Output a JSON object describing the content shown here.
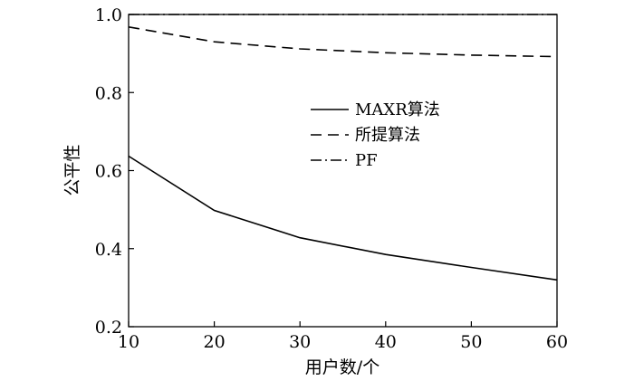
{
  "chart_data": {
    "type": "line",
    "xlabel": "用户数/个",
    "ylabel": "公平性",
    "x": [
      10,
      20,
      30,
      40,
      50,
      60
    ],
    "xlim": [
      10,
      60
    ],
    "ylim": [
      0.2,
      1.0
    ],
    "xticks": [
      10,
      20,
      30,
      40,
      50,
      60
    ],
    "yticks": [
      0.2,
      0.4,
      0.6,
      0.8,
      1.0
    ],
    "ytick_labels": [
      "0.2",
      "0.4",
      "0.6",
      "0.8",
      "1.0"
    ],
    "grid": false,
    "legend_position": "center-right",
    "series": [
      {
        "name": "MAXR算法",
        "style": "solid",
        "color": "#000000",
        "values": [
          0.637,
          0.498,
          0.428,
          0.385,
          0.352,
          0.32
        ]
      },
      {
        "name": "所提算法",
        "style": "dashed",
        "color": "#000000",
        "values": [
          0.968,
          0.93,
          0.912,
          0.902,
          0.896,
          0.892
        ]
      },
      {
        "name": "PF",
        "style": "dashdot",
        "color": "#000000",
        "values": [
          1.0,
          1.0,
          1.0,
          1.0,
          1.0,
          1.0
        ]
      }
    ]
  }
}
